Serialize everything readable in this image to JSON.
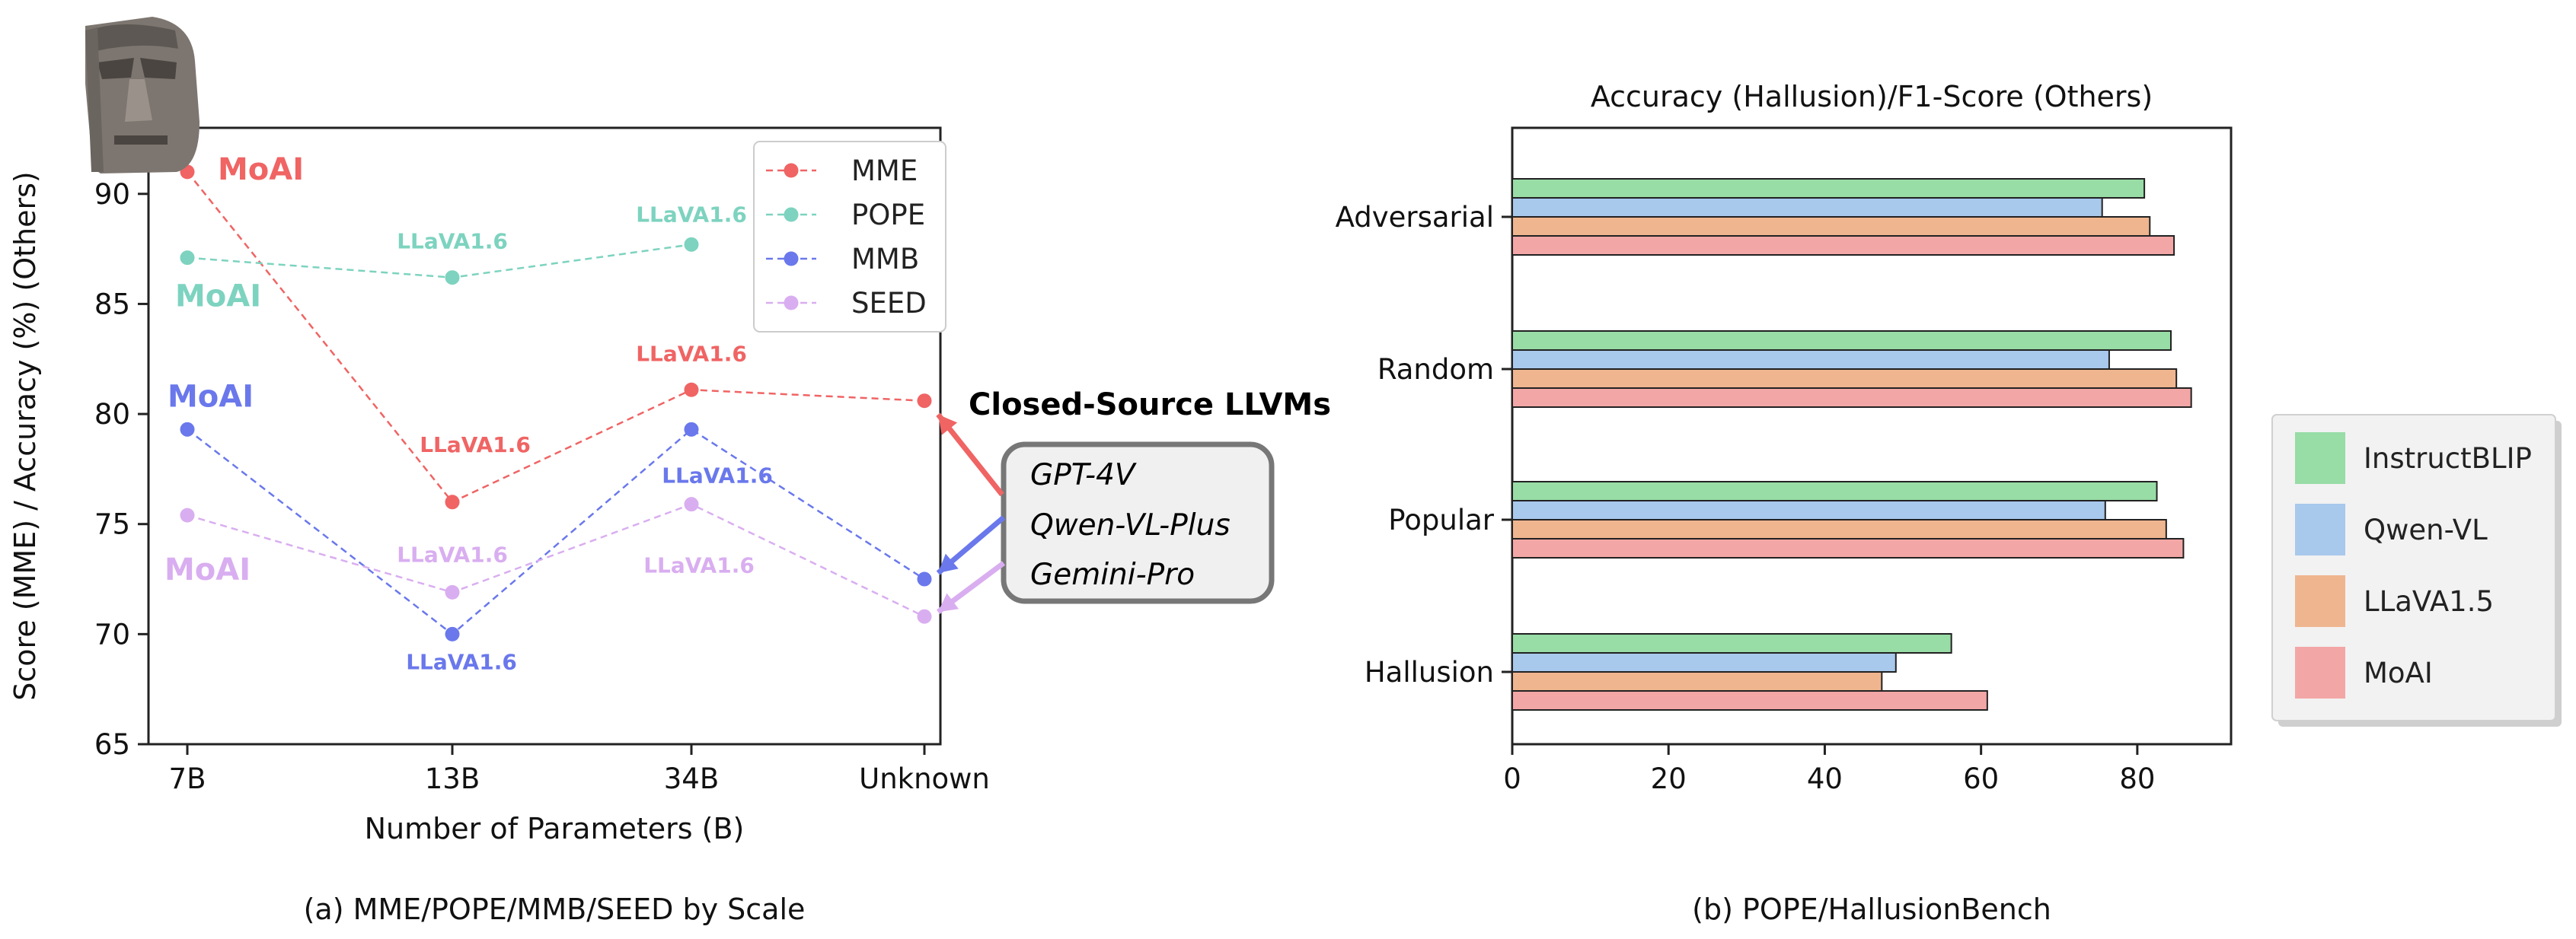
{
  "figure_a": {
    "caption": "(a) MME/POPE/MMB/SEED by Scale",
    "xlabel": "Number of Parameters (B)",
    "ylabel": "Score (MME) / Accuracy (%) (Others)",
    "closed_source_title": "Closed-Source LLVMs",
    "closed_source_models": [
      "GPT-4V",
      "Qwen-VL-Plus",
      "Gemini-Pro"
    ],
    "point_labels": {
      "first": "MoAI",
      "middle": "LLaVA1.6"
    }
  },
  "figure_b": {
    "caption": "(b) POPE/HallusionBench",
    "title": "Accuracy (Hallusion)/F1-Score (Others)"
  },
  "chart_data": [
    {
      "type": "line",
      "categories": [
        "7B",
        "13B",
        "34B",
        "Unknown"
      ],
      "ylim": [
        65,
        93
      ],
      "yticks": [
        65,
        70,
        75,
        80,
        85,
        90
      ],
      "legend_position": "top-right",
      "series": [
        {
          "name": "MME",
          "color": "#f06464",
          "values": [
            91.0,
            76.0,
            81.1,
            80.6
          ]
        },
        {
          "name": "POPE",
          "color": "#7dd3bf",
          "values": [
            87.1,
            86.2,
            87.7,
            null
          ]
        },
        {
          "name": "MMB",
          "color": "#6a78ec",
          "values": [
            79.3,
            70.0,
            79.3,
            72.5
          ]
        },
        {
          "name": "SEED",
          "color": "#d9aef0",
          "values": [
            75.4,
            71.9,
            75.9,
            70.8
          ]
        }
      ]
    },
    {
      "type": "bar",
      "orientation": "horizontal",
      "categories": [
        "Adversarial",
        "Random",
        "Popular",
        "Hallusion"
      ],
      "xlim": [
        0,
        92
      ],
      "xticks": [
        0,
        20,
        40,
        60,
        80
      ],
      "legend_position": "right",
      "series": [
        {
          "name": "InstructBLIP",
          "color": "#98dca6",
          "values": [
            80.9,
            84.3,
            82.5,
            56.2
          ]
        },
        {
          "name": "Qwen-VL",
          "color": "#a8c8ec",
          "values": [
            75.5,
            76.4,
            75.9,
            49.1
          ]
        },
        {
          "name": "LLaVA1.5",
          "color": "#efb58f",
          "values": [
            81.6,
            85.0,
            83.7,
            47.3
          ]
        },
        {
          "name": "MoAI",
          "color": "#f3a6a6",
          "values": [
            84.7,
            86.9,
            85.9,
            60.8
          ]
        }
      ]
    }
  ]
}
